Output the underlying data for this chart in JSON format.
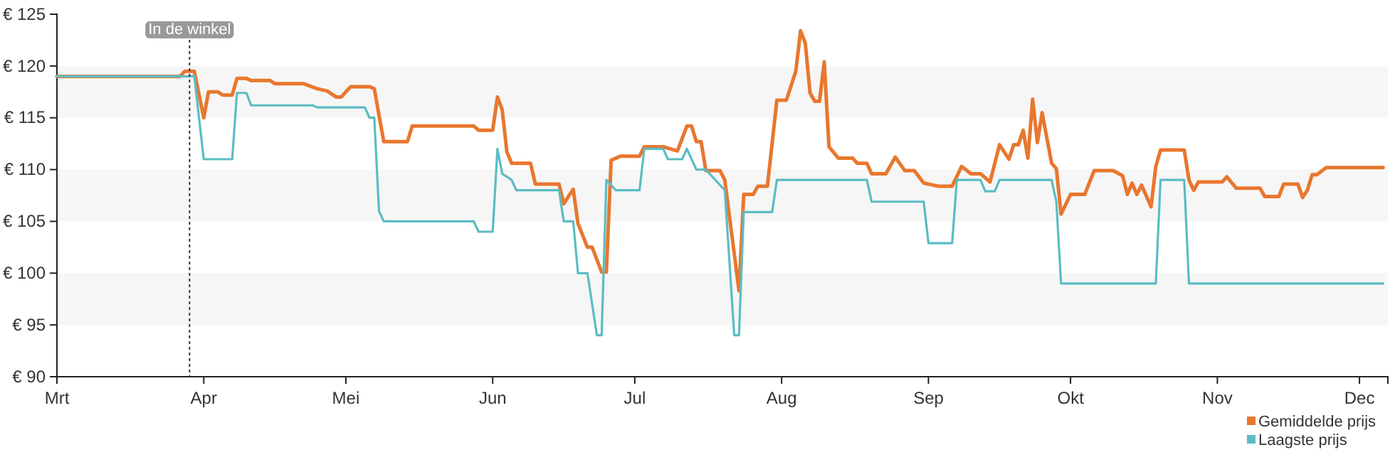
{
  "chart_data": {
    "type": "line",
    "xlim": [
      "--03-01",
      "--12-07"
    ],
    "xticks": [
      {
        "value": "--03-01",
        "label": "Mrt"
      },
      {
        "value": "--04-01",
        "label": "Apr"
      },
      {
        "value": "--05-01",
        "label": "Mei"
      },
      {
        "value": "--06-01",
        "label": "Jun"
      },
      {
        "value": "--07-01",
        "label": "Jul"
      },
      {
        "value": "--08-01",
        "label": "Aug"
      },
      {
        "value": "--09-01",
        "label": "Sep"
      },
      {
        "value": "--10-01",
        "label": "Okt"
      },
      {
        "value": "--11-01",
        "label": "Nov"
      },
      {
        "value": "--12-01",
        "label": "Dec"
      }
    ],
    "ylim": [
      90,
      125
    ],
    "yticks": [
      {
        "value": 90,
        "label": "€ 90"
      },
      {
        "value": 95,
        "label": "€ 95"
      },
      {
        "value": 100,
        "label": "€ 100"
      },
      {
        "value": 105,
        "label": "€ 105"
      },
      {
        "value": 110,
        "label": "€ 110"
      },
      {
        "value": 115,
        "label": "€ 115"
      },
      {
        "value": 120,
        "label": "€ 120"
      },
      {
        "value": 125,
        "label": "€ 125"
      }
    ],
    "bands": [
      {
        "axis": "y",
        "from": 115,
        "to": 120,
        "color": "#f6f6f6"
      },
      {
        "axis": "y",
        "from": 105,
        "to": 110,
        "color": "#f6f6f6"
      },
      {
        "axis": "y",
        "from": 95,
        "to": 100,
        "color": "#f6f6f6"
      }
    ],
    "legend": "bottom right",
    "ref_lines": [
      {
        "axis": "x",
        "value": "--03-29",
        "label": "In de winkel",
        "color": "#333333",
        "line_style": "dotted"
      }
    ],
    "series": [
      {
        "name": "Gemiddelde prijs",
        "color": "#e8772e",
        "x": [
          "--03-01",
          "--03-27",
          "--03-28",
          "--03-30",
          "--04-01",
          "--04-02",
          "--04-04",
          "--04-05",
          "--04-07",
          "--04-08",
          "--04-10",
          "--04-11",
          "--04-15",
          "--04-16",
          "--04-22",
          "--04-25",
          "--04-27",
          "--04-29",
          "--04-30",
          "--05-02",
          "--05-06",
          "--05-07",
          "--05-09",
          "--05-14",
          "--05-15",
          "--05-28",
          "--05-29",
          "--06-01",
          "--06-02",
          "--06-03",
          "--06-04",
          "--06-05",
          "--06-09",
          "--06-10",
          "--06-15",
          "--06-16",
          "--06-18",
          "--06-19",
          "--06-21",
          "--06-22",
          "--06-24",
          "--06-25",
          "--06-26",
          "--06-28",
          "--07-02",
          "--07-03",
          "--07-07",
          "--07-10",
          "--07-12",
          "--07-13",
          "--07-14",
          "--07-15",
          "--07-16",
          "--07-19",
          "--07-20",
          "--07-23",
          "--07-24",
          "--07-26",
          "--07-27",
          "--07-29",
          "--07-31",
          "--08-02",
          "--08-04",
          "--08-05",
          "--08-06",
          "--08-07",
          "--08-08",
          "--08-09",
          "--08-10",
          "--08-11",
          "--08-13",
          "--08-16",
          "--08-17",
          "--08-19",
          "--08-20",
          "--08-23",
          "--08-25",
          "--08-27",
          "--08-29",
          "--08-31",
          "--09-03",
          "--09-06",
          "--09-08",
          "--09-10",
          "--09-12",
          "--09-14",
          "--09-16",
          "--09-18",
          "--09-19",
          "--09-20",
          "--09-21",
          "--09-22",
          "--09-23",
          "--09-24",
          "--09-25",
          "--09-27",
          "--09-28",
          "--09-29",
          "--10-01",
          "--10-04",
          "--10-06",
          "--10-10",
          "--10-12",
          "--10-13",
          "--10-14",
          "--10-15",
          "--10-16",
          "--10-18",
          "--10-19",
          "--10-20",
          "--10-25",
          "--10-26",
          "--10-27",
          "--10-28",
          "--11-02",
          "--11-03",
          "--11-05",
          "--11-10",
          "--11-11",
          "--11-14",
          "--11-15",
          "--11-18",
          "--11-19",
          "--11-20",
          "--11-21",
          "--11-22",
          "--11-24",
          "--12-06"
        ],
        "values": [
          119,
          119,
          119.5,
          119.5,
          115,
          117.5,
          117.5,
          117.2,
          117.2,
          118.8,
          118.8,
          118.6,
          118.6,
          118.3,
          118.3,
          117.8,
          117.6,
          117,
          117,
          118,
          118,
          117.8,
          112.7,
          112.7,
          114.2,
          114.2,
          113.8,
          113.8,
          117,
          115.8,
          111.7,
          110.6,
          110.6,
          108.6,
          108.6,
          106.7,
          108.1,
          104.8,
          102.5,
          102.5,
          100.1,
          100.1,
          110.9,
          111.3,
          111.3,
          112.2,
          112.2,
          111.8,
          114.2,
          114.2,
          112.7,
          112.7,
          109.9,
          109.9,
          109,
          98.3,
          107.6,
          107.6,
          108.4,
          108.4,
          116.7,
          116.7,
          119.5,
          123.4,
          122.2,
          117.4,
          116.6,
          116.6,
          120.4,
          112.2,
          111.1,
          111.1,
          110.6,
          110.6,
          109.6,
          109.6,
          111.2,
          109.9,
          109.9,
          108.7,
          108.4,
          108.4,
          110.3,
          109.6,
          109.6,
          108.8,
          112.4,
          111,
          112.4,
          112.4,
          113.8,
          111.1,
          116.8,
          112.6,
          115.5,
          110.6,
          110.1,
          105.7,
          107.6,
          107.6,
          109.9,
          109.9,
          109.4,
          107.6,
          108.7,
          107.6,
          108.5,
          106.4,
          110.3,
          111.9,
          111.9,
          109,
          108,
          108.8,
          108.8,
          109.3,
          108.2,
          108.2,
          107.4,
          107.4,
          108.6,
          108.6,
          107.3,
          108,
          109.5,
          109.5,
          110.2,
          110.2
        ]
      },
      {
        "name": "Laagste prijs",
        "color": "#5bbcc4",
        "x": [
          "--03-01",
          "--03-30",
          "--04-01",
          "--04-07",
          "--04-08",
          "--04-10",
          "--04-11",
          "--04-24",
          "--04-25",
          "--05-05",
          "--05-06",
          "--05-07",
          "--05-08",
          "--05-09",
          "--05-28",
          "--05-29",
          "--06-01",
          "--06-02",
          "--06-03",
          "--06-05",
          "--06-06",
          "--06-15",
          "--06-16",
          "--06-18",
          "--06-19",
          "--06-21",
          "--06-23",
          "--06-24",
          "--06-25",
          "--06-27",
          "--07-02",
          "--07-03",
          "--07-07",
          "--07-08",
          "--07-11",
          "--07-12",
          "--07-14",
          "--07-16",
          "--07-18",
          "--07-20",
          "--07-22",
          "--07-23",
          "--07-24",
          "--07-30",
          "--07-31",
          "--08-19",
          "--08-20",
          "--08-31",
          "--09-01",
          "--09-06",
          "--09-07",
          "--09-12",
          "--09-13",
          "--09-15",
          "--09-16",
          "--09-27",
          "--09-28",
          "--09-29",
          "--10-19",
          "--10-20",
          "--10-25",
          "--10-26",
          "--12-06"
        ],
        "values": [
          119,
          119,
          111,
          111,
          117.4,
          117.4,
          116.2,
          116.2,
          116,
          116,
          115,
          115,
          106,
          105,
          105,
          104,
          104,
          112,
          109.6,
          109,
          108,
          108,
          105,
          105,
          100,
          100,
          94,
          94,
          109,
          108,
          108,
          112,
          112,
          111,
          111,
          112,
          110,
          110,
          109,
          108,
          94,
          94,
          105.9,
          105.9,
          109,
          109,
          106.9,
          106.9,
          102.9,
          102.9,
          109,
          109,
          107.9,
          107.9,
          109,
          109,
          106.9,
          99,
          99,
          109,
          109,
          99,
          99
        ]
      }
    ]
  }
}
